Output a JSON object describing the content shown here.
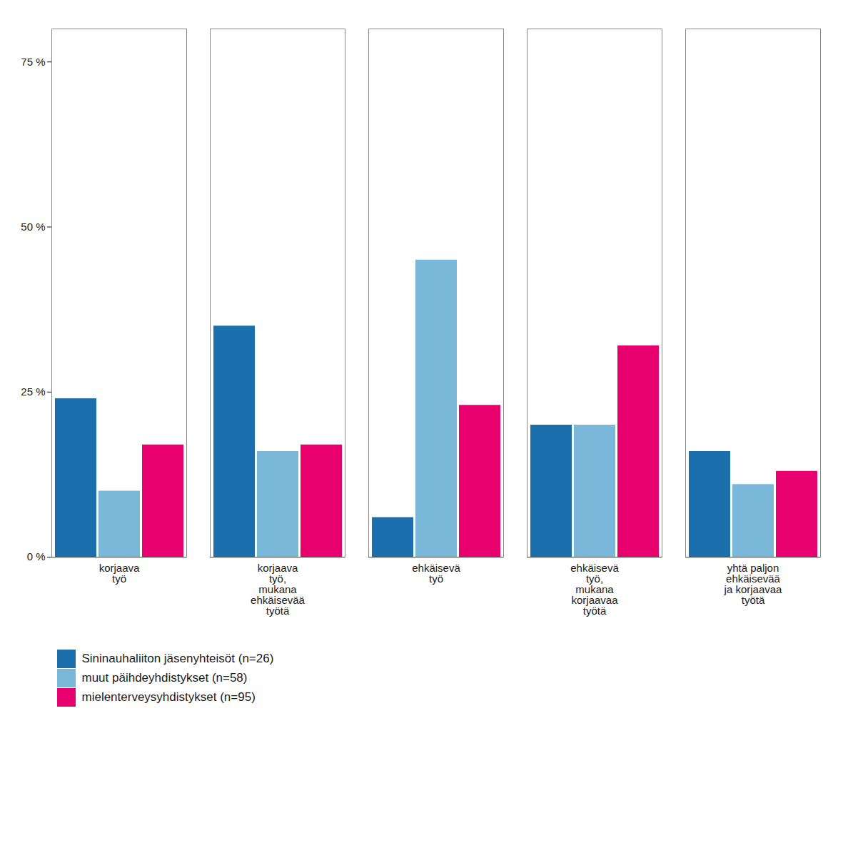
{
  "chart_data": {
    "type": "bar",
    "categories": [
      "korjaava\ntyö",
      "korjaava\ntyö,\nmukana\nehkäisevää\ntyötä",
      "ehkäisevä\ntyö",
      "ehkäisevä\ntyö,\nmukana\nkorjaavaa\ntyötä",
      "yhtä paljon\nehkäisevää\nja korjaavaa\ntyötä"
    ],
    "series": [
      {
        "name": "Sininauhaliiton jäsenyhteisöt (n=26)",
        "color": "#1a6fac",
        "values": [
          24,
          35,
          6,
          20,
          16
        ]
      },
      {
        "name": "muut päihdeyhdistykset (n=58)",
        "color": "#7ab8d9",
        "values": [
          10,
          16,
          45,
          20,
          11
        ]
      },
      {
        "name": "mielenterveysyhdistykset (n=95)",
        "color": "#e8006f",
        "values": [
          17,
          17,
          23,
          32,
          13
        ]
      }
    ],
    "ylim": [
      0,
      80
    ],
    "yticks": [
      {
        "value": 0,
        "label": "0 %"
      },
      {
        "value": 25,
        "label": "25 %"
      },
      {
        "value": 50,
        "label": "50 %"
      },
      {
        "value": 75,
        "label": "75 %"
      }
    ],
    "grid": false,
    "legend": "bottom"
  }
}
